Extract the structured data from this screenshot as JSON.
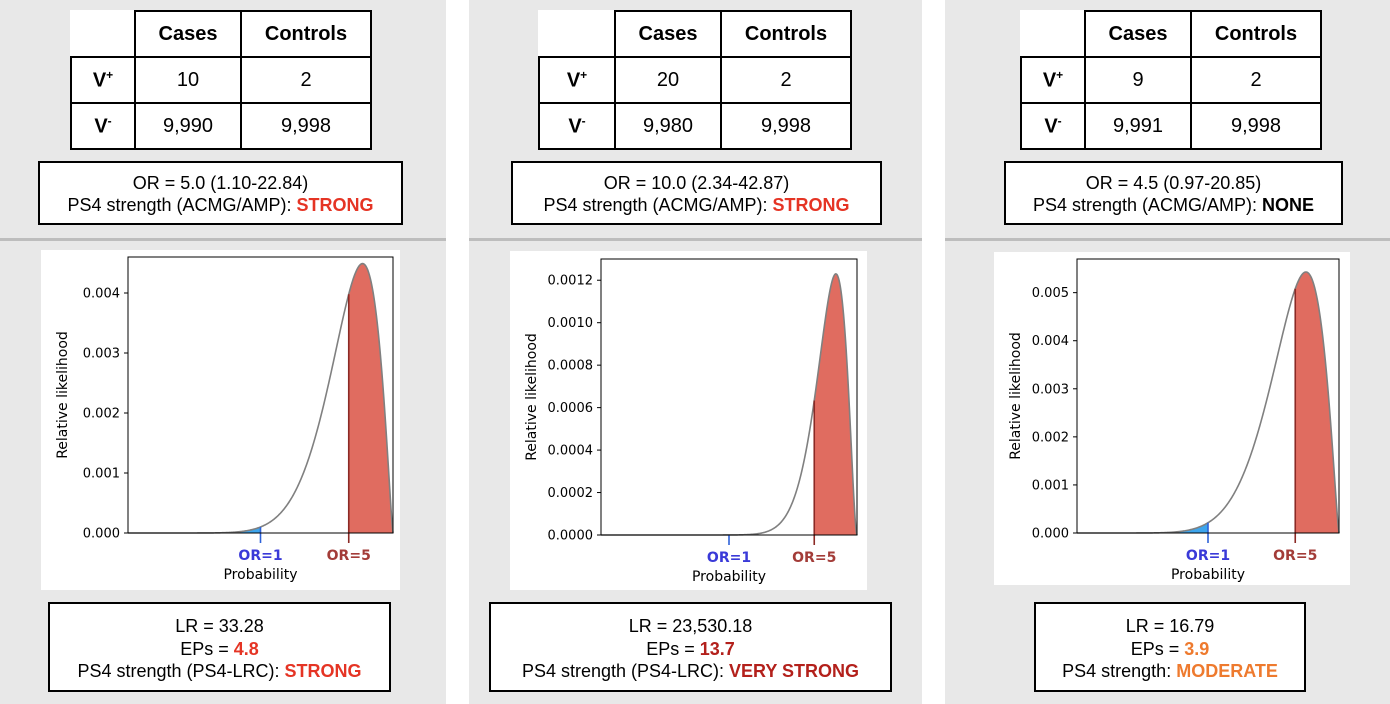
{
  "colors": {
    "red_fill": "#e06c60",
    "blue_fill": "#3da5ec",
    "curve": "#808080",
    "or1_label": "#3a3ad8",
    "or5_label": "#a33c38",
    "strong": "#e53424",
    "very_strong": "#b3201b",
    "moderate": "#ee7a2e"
  },
  "table_headers": {
    "cases": "Cases",
    "controls": "Controls",
    "vplus_main": "V",
    "vplus_sup": "+",
    "vminus_main": "V",
    "vminus_sup": "-"
  },
  "panels": [
    {
      "table": {
        "vplus_cases": "10",
        "vplus_controls": "2",
        "vminus_cases": "9,990",
        "vminus_controls": "9,998"
      },
      "or_line": "OR = 5.0 (1.10-22.84)",
      "ps4_prefix": "PS4 strength (ACMG/AMP): ",
      "ps4_value": "STRONG",
      "lr_line": "LR = 33.28",
      "eps_prefix": "EPs = ",
      "eps_value": "4.8",
      "ps4lrc_prefix": "PS4 strength (PS4-LRC): ",
      "ps4lrc_value": "STRONG"
    },
    {
      "table": {
        "vplus_cases": "20",
        "vplus_controls": "2",
        "vminus_cases": "9,980",
        "vminus_controls": "9,998"
      },
      "or_line": "OR = 10.0 (2.34-42.87)",
      "ps4_prefix": "PS4 strength (ACMG/AMP): ",
      "ps4_value": "STRONG",
      "lr_line": "LR = 23,530.18",
      "eps_prefix": "EPs = ",
      "eps_value": "13.7",
      "ps4lrc_prefix": "PS4 strength (PS4-LRC): ",
      "ps4lrc_value": "VERY STRONG"
    },
    {
      "table": {
        "vplus_cases": "9",
        "vplus_controls": "2",
        "vminus_cases": "9,991",
        "vminus_controls": "9,998"
      },
      "or_line": "OR = 4.5 (0.97-20.85)",
      "ps4_prefix": "PS4 strength (ACMG/AMP): ",
      "ps4_value": "NONE",
      "lr_line": "LR = 16.79",
      "eps_prefix": "EPs = ",
      "eps_value": "3.9",
      "ps4lrc_prefix": "PS4 strength: ",
      "ps4lrc_value": "MODERATE"
    }
  ],
  "chart_data": [
    {
      "type": "area",
      "xlabel": "Probability",
      "ylabel": "Relative likelihood",
      "xlim": [
        0,
        1
      ],
      "ylim": [
        0,
        0.0046
      ],
      "yticks": [
        0.0,
        0.001,
        0.002,
        0.003,
        0.004
      ],
      "ytick_labels": [
        "0.000",
        "0.001",
        "0.002",
        "0.003",
        "0.004"
      ],
      "curve": {
        "shape": "beta",
        "alpha": 11,
        "beta": 2.3,
        "peak": 0.00449
      },
      "markers": [
        {
          "label": "OR=1",
          "x": 0.5,
          "shaded": "left",
          "color": "blue"
        },
        {
          "label": "OR=5",
          "x": 0.833,
          "shaded": "right",
          "color": "red"
        }
      ]
    },
    {
      "type": "area",
      "xlabel": "Probability",
      "ylabel": "Relative likelihood",
      "xlim": [
        0,
        1
      ],
      "ylim": [
        0,
        0.0013
      ],
      "yticks": [
        0.0,
        0.0002,
        0.0004,
        0.0006,
        0.0008,
        0.001,
        0.0012
      ],
      "ytick_labels": [
        "0.0000",
        "0.0002",
        "0.0004",
        "0.0006",
        "0.0008",
        "0.0010",
        "0.0012"
      ],
      "curve": {
        "shape": "beta",
        "alpha": 21,
        "beta": 2.8,
        "peak": 0.00123
      },
      "markers": [
        {
          "label": "OR=1",
          "x": 0.5,
          "shaded": "left",
          "color": "blue"
        },
        {
          "label": "OR=5",
          "x": 0.833,
          "shaded": "right",
          "color": "red"
        }
      ]
    },
    {
      "type": "area",
      "xlabel": "Probability",
      "ylabel": "Relative likelihood",
      "xlim": [
        0,
        1
      ],
      "ylim": [
        0,
        0.0057
      ],
      "yticks": [
        0.0,
        0.001,
        0.002,
        0.003,
        0.004,
        0.005
      ],
      "ytick_labels": [
        "0.000",
        "0.001",
        "0.002",
        "0.003",
        "0.004",
        "0.005"
      ],
      "curve": {
        "shape": "beta",
        "alpha": 10,
        "beta": 2.3,
        "peak": 0.00543
      },
      "markers": [
        {
          "label": "OR=1",
          "x": 0.5,
          "shaded": "left",
          "color": "blue"
        },
        {
          "label": "OR=5",
          "x": 0.833,
          "shaded": "right",
          "color": "red"
        }
      ]
    }
  ]
}
